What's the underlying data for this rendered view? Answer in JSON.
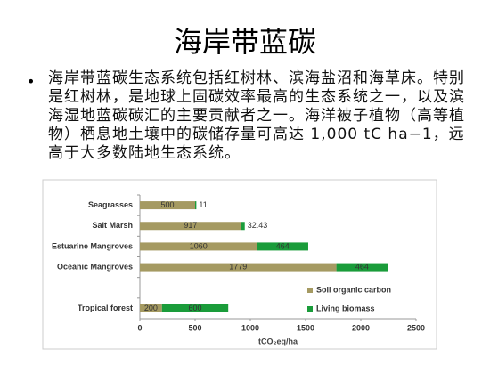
{
  "title": "海岸带蓝碳",
  "bullet": "海岸带蓝碳生态系统包括红树林、滨海盐沼和海草床。特别是红树林，是地球上固碳效率最高的生态系统之一，以及滨海湿地蓝碳碳汇的主要贡献者之一。海洋被子植物（高等植物）栖息地土壤中的碳储存量可高达 1,000 tC ha−1，远高于大多数陆地生态系统。",
  "chart_data": {
    "type": "stacked-barh",
    "categories": [
      "Seagrasses",
      "Salt Marsh",
      "Estuarine Mangroves",
      "Oceanic Mangroves",
      null,
      "Tropical forest"
    ],
    "series": [
      {
        "name": "Soil organic carbon",
        "color": "#a59a62",
        "values": [
          500,
          917,
          1060,
          1779,
          null,
          200
        ]
      },
      {
        "name": "Living biomass",
        "color": "#1a9c3a",
        "values": [
          11,
          32.43,
          464,
          464,
          null,
          600
        ]
      }
    ],
    "xlim": [
      0,
      2500
    ],
    "xticks": [
      0,
      500,
      1000,
      1500,
      2000,
      2500
    ],
    "xlabel": "tCO₂eq/ha",
    "legend": "lower right"
  }
}
